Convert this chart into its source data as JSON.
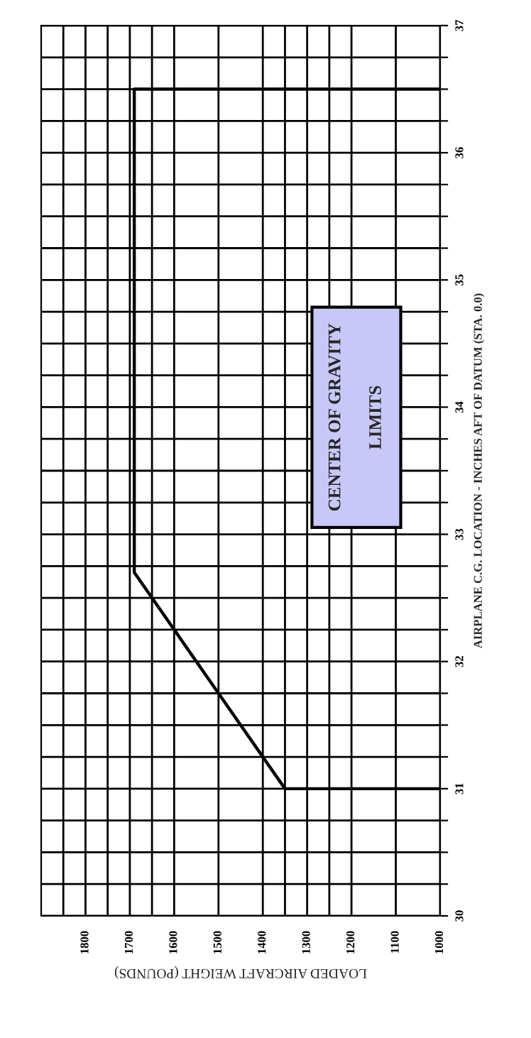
{
  "chart_data": {
    "type": "line",
    "title": "CENTER OF GRAVITY\nLIMITS",
    "xlabel": "LOADED AIRCRAFT WEIGHT (POUNDS)",
    "ylabel": "AIRPLANE C.G. LOCATION - INCHES AFT OF DATUM (STA. 0.0)",
    "series": [
      {
        "color": "#000000",
        "x": [
          1000,
          1350,
          1690,
          1690,
          1000
        ],
        "values": [
          31.0,
          31.0,
          32.7,
          36.5,
          36.5
        ]
      }
    ],
    "xlim": [
      1900,
      1000
    ],
    "xticks": [
      1000,
      1100,
      1200,
      {
        "value": 1250,
        "label": null
      },
      1300,
      {
        "value": 1350,
        "label": null
      },
      1400,
      1500,
      1600,
      {
        "value": 1650,
        "label": null
      },
      1700,
      {
        "value": 1750,
        "label": null
      },
      1800,
      {
        "value": 1850,
        "label": null
      }
    ],
    "ylim": [
      30,
      37
    ],
    "yticks": [
      30,
      {
        "value": 30.25,
        "label": null
      },
      {
        "value": 30.5,
        "label": null
      },
      {
        "value": 30.75,
        "label": null
      },
      31,
      {
        "value": 31.25,
        "label": null
      },
      {
        "value": 31.5,
        "label": null
      },
      {
        "value": 31.75,
        "label": null
      },
      32,
      {
        "value": 32.25,
        "label": null
      },
      {
        "value": 32.5,
        "label": null
      },
      {
        "value": 32.75,
        "label": null
      },
      33,
      {
        "value": 33.25,
        "label": null
      },
      {
        "value": 33.5,
        "label": null
      },
      {
        "value": 33.75,
        "label": null
      },
      34,
      {
        "value": 34.25,
        "label": null
      },
      {
        "value": 34.5,
        "label": null
      },
      {
        "value": 34.75,
        "label": null
      },
      35,
      {
        "value": 35.25,
        "label": null
      },
      {
        "value": 35.5,
        "label": null
      },
      {
        "value": 35.75,
        "label": null
      },
      36,
      {
        "value": 36.25,
        "label": null
      },
      {
        "value": 36.5,
        "label": null
      },
      {
        "value": 36.75,
        "label": null
      },
      37
    ],
    "grid": true,
    "line_style": "solid"
  }
}
